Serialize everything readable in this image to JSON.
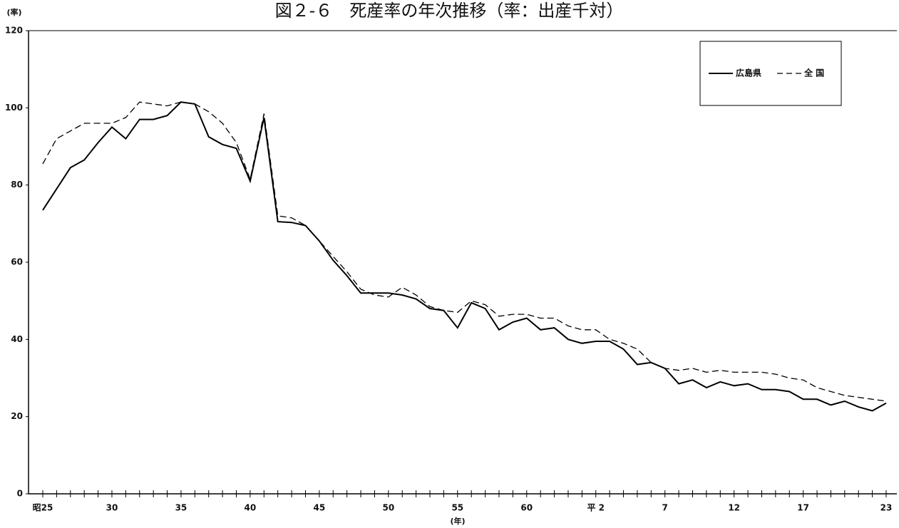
{
  "chart_data": {
    "type": "line",
    "title": "図２-６　死産率の年次推移（率：出産千対）",
    "y_label": "(率)",
    "x_label": "(年)",
    "categories": [
      "昭25",
      null,
      null,
      null,
      null,
      "30",
      null,
      null,
      null,
      null,
      "35",
      null,
      null,
      null,
      null,
      "40",
      null,
      null,
      null,
      null,
      "45",
      null,
      null,
      null,
      null,
      "50",
      null,
      null,
      null,
      null,
      "55",
      null,
      null,
      null,
      null,
      "60",
      null,
      null,
      null,
      null,
      "平 2",
      null,
      null,
      null,
      null,
      "7",
      null,
      null,
      null,
      null,
      "12",
      null,
      null,
      null,
      null,
      "17",
      null,
      null,
      null,
      null,
      null,
      "23"
    ],
    "series": [
      {
        "name": "広島県",
        "color": "#000000",
        "dash": false,
        "values": [
          73.5,
          79,
          84.5,
          86.5,
          91,
          95,
          92,
          97,
          97,
          98,
          101.5,
          101,
          92.5,
          90.5,
          89.5,
          81,
          97.5,
          70.5,
          70.3,
          69.5,
          65.5,
          60.5,
          56.5,
          52,
          52,
          52,
          51.5,
          50.5,
          48,
          47.5,
          43,
          49.5,
          48,
          42.5,
          44.5,
          45.5,
          42.5,
          43,
          40,
          39,
          39.5,
          39.5,
          37.5,
          33.5,
          34,
          32.5,
          28.5,
          29.5,
          27.5,
          29,
          28,
          28.5,
          27,
          27,
          26.5,
          24.5,
          24.5,
          23,
          24,
          22.5,
          21.5,
          23.5
        ]
      },
      {
        "name": "全 国",
        "color": "#000000",
        "dash": true,
        "values": [
          85.5,
          92,
          94,
          96,
          96,
          96,
          97.5,
          101.5,
          101,
          100.5,
          101.5,
          101,
          99,
          96,
          91,
          81.5,
          98.5,
          72,
          71.5,
          69.5,
          65.5,
          61.5,
          57.5,
          53,
          51.5,
          51,
          53.5,
          51.5,
          48.5,
          47.5,
          47,
          50,
          49,
          46,
          46.5,
          46.5,
          45.5,
          45.5,
          43.5,
          42.5,
          42.5,
          40,
          39,
          37.5,
          34,
          32.5,
          32,
          32.5,
          31.5,
          32,
          31.5,
          31.5,
          31.5,
          31,
          30,
          29.5,
          27.5,
          26.5,
          25.5,
          25,
          24.5,
          24
        ]
      }
    ],
    "ylim": [
      0,
      120
    ],
    "yticks": [
      0,
      20,
      40,
      60,
      80,
      100,
      120
    ],
    "grid": false,
    "legend": "upper right"
  }
}
